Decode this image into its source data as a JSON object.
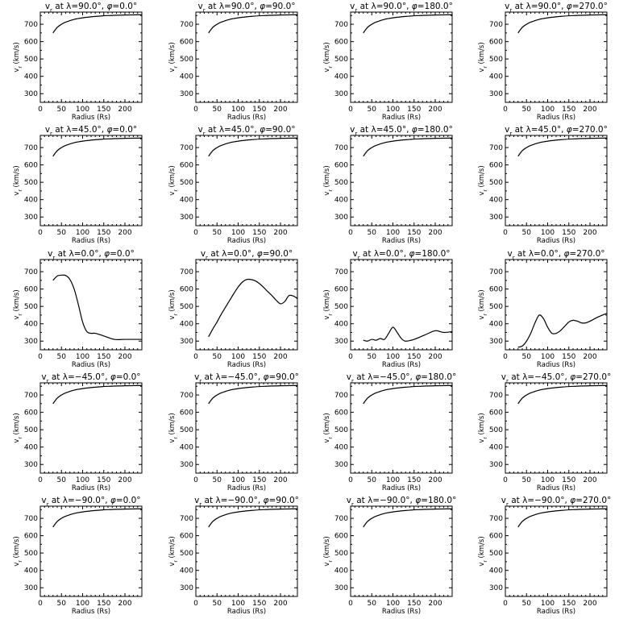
{
  "chart_data": [
    {
      "type": "line",
      "title": "v_r at λ=90.0°, φ=0.0°",
      "title_parts": [
        "v",
        "r",
        "at λ=90.0°, ",
        "φ",
        "=0.0°"
      ],
      "xlabel": "Radius (Rs)",
      "ylabel": "v_r (km/s)",
      "ylabel_parts": [
        "v",
        "r",
        "(km/s)"
      ],
      "xlim": [
        0,
        240
      ],
      "ylim": [
        250,
        770
      ],
      "xticks": [
        0,
        50,
        100,
        150,
        200
      ],
      "yticks": [
        300,
        400,
        500,
        600,
        700
      ],
      "x": [
        30,
        40,
        50,
        60,
        80,
        100,
        130,
        160,
        200,
        240
      ],
      "y": [
        650,
        682,
        700,
        712,
        728,
        737,
        745,
        750,
        753,
        755
      ]
    },
    {
      "type": "line",
      "title": "v_r at λ=90.0°, φ=90.0°",
      "title_parts": [
        "v",
        "r",
        "at λ=90.0°, ",
        "φ",
        "=90.0°"
      ],
      "xlabel": "Radius (Rs)",
      "ylabel": "v_r (km/s)",
      "ylabel_parts": [
        "v",
        "r",
        "(km/s)"
      ],
      "xlim": [
        0,
        240
      ],
      "ylim": [
        250,
        770
      ],
      "xticks": [
        0,
        50,
        100,
        150,
        200
      ],
      "yticks": [
        300,
        400,
        500,
        600,
        700
      ],
      "x": [
        30,
        40,
        50,
        60,
        80,
        100,
        130,
        160,
        200,
        240
      ],
      "y": [
        650,
        682,
        700,
        712,
        728,
        737,
        745,
        750,
        753,
        755
      ]
    },
    {
      "type": "line",
      "title": "v_r at λ=90.0°, φ=180.0°",
      "title_parts": [
        "v",
        "r",
        "at λ=90.0°, ",
        "φ",
        "=180.0°"
      ],
      "xlabel": "Radius (Rs)",
      "ylabel": "v_r (km/s)",
      "ylabel_parts": [
        "v",
        "r",
        "(km/s)"
      ],
      "xlim": [
        0,
        240
      ],
      "ylim": [
        250,
        770
      ],
      "xticks": [
        0,
        50,
        100,
        150,
        200
      ],
      "yticks": [
        300,
        400,
        500,
        600,
        700
      ],
      "x": [
        30,
        40,
        50,
        60,
        80,
        100,
        130,
        160,
        200,
        240
      ],
      "y": [
        650,
        682,
        700,
        712,
        728,
        737,
        745,
        750,
        753,
        755
      ]
    },
    {
      "type": "line",
      "title": "v_r at λ=90.0°, φ=270.0°",
      "title_parts": [
        "v",
        "r",
        "at λ=90.0°, ",
        "φ",
        "=270.0°"
      ],
      "xlabel": "Radius (Rs)",
      "ylabel": "v_r (km/s)",
      "ylabel_parts": [
        "v",
        "r",
        "(km/s)"
      ],
      "xlim": [
        0,
        240
      ],
      "ylim": [
        250,
        770
      ],
      "xticks": [
        0,
        50,
        100,
        150,
        200
      ],
      "yticks": [
        300,
        400,
        500,
        600,
        700
      ],
      "x": [
        30,
        40,
        50,
        60,
        80,
        100,
        130,
        160,
        200,
        240
      ],
      "y": [
        650,
        682,
        700,
        712,
        728,
        737,
        745,
        750,
        753,
        755
      ]
    },
    {
      "type": "line",
      "title": "v_r at λ=45.0°, φ=0.0°",
      "title_parts": [
        "v",
        "r",
        "at λ=45.0°, ",
        "φ",
        "=0.0°"
      ],
      "xlabel": "Radius (Rs)",
      "ylabel": "v_r (km/s)",
      "ylabel_parts": [
        "v",
        "r",
        "(km/s)"
      ],
      "xlim": [
        0,
        240
      ],
      "ylim": [
        250,
        770
      ],
      "xticks": [
        0,
        50,
        100,
        150,
        200
      ],
      "yticks": [
        300,
        400,
        500,
        600,
        700
      ],
      "x": [
        30,
        40,
        50,
        60,
        80,
        100,
        130,
        160,
        200,
        240
      ],
      "y": [
        650,
        682,
        700,
        712,
        728,
        737,
        745,
        750,
        753,
        755
      ]
    },
    {
      "type": "line",
      "title": "v_r at λ=45.0°, φ=90.0°",
      "title_parts": [
        "v",
        "r",
        "at λ=45.0°, ",
        "φ",
        "=90.0°"
      ],
      "xlabel": "Radius (Rs)",
      "ylabel": "v_r (km/s)",
      "ylabel_parts": [
        "v",
        "r",
        "(km/s)"
      ],
      "xlim": [
        0,
        240
      ],
      "ylim": [
        250,
        770
      ],
      "xticks": [
        0,
        50,
        100,
        150,
        200
      ],
      "yticks": [
        300,
        400,
        500,
        600,
        700
      ],
      "x": [
        30,
        40,
        50,
        60,
        80,
        100,
        130,
        160,
        200,
        240
      ],
      "y": [
        650,
        682,
        700,
        712,
        728,
        737,
        745,
        750,
        753,
        755
      ]
    },
    {
      "type": "line",
      "title": "v_r at λ=45.0°, φ=180.0°",
      "title_parts": [
        "v",
        "r",
        "at λ=45.0°, ",
        "φ",
        "=180.0°"
      ],
      "xlabel": "Radius (Rs)",
      "ylabel": "v_r (km/s)",
      "ylabel_parts": [
        "v",
        "r",
        "(km/s)"
      ],
      "xlim": [
        0,
        240
      ],
      "ylim": [
        250,
        770
      ],
      "xticks": [
        0,
        50,
        100,
        150,
        200
      ],
      "yticks": [
        300,
        400,
        500,
        600,
        700
      ],
      "x": [
        30,
        40,
        50,
        60,
        80,
        100,
        130,
        160,
        200,
        240
      ],
      "y": [
        650,
        682,
        700,
        712,
        728,
        737,
        745,
        750,
        753,
        755
      ]
    },
    {
      "type": "line",
      "title": "v_r at λ=45.0°, φ=270.0°",
      "title_parts": [
        "v",
        "r",
        "at λ=45.0°, ",
        "φ",
        "=270.0°"
      ],
      "xlabel": "Radius (Rs)",
      "ylabel": "v_r (km/s)",
      "ylabel_parts": [
        "v",
        "r",
        "(km/s)"
      ],
      "xlim": [
        0,
        240
      ],
      "ylim": [
        250,
        770
      ],
      "xticks": [
        0,
        50,
        100,
        150,
        200
      ],
      "yticks": [
        300,
        400,
        500,
        600,
        700
      ],
      "x": [
        30,
        40,
        50,
        60,
        80,
        100,
        130,
        160,
        200,
        240
      ],
      "y": [
        650,
        682,
        700,
        712,
        728,
        737,
        745,
        750,
        753,
        755
      ]
    },
    {
      "type": "line",
      "title": "v_r at λ=0.0°, φ=0.0°",
      "title_parts": [
        "v",
        "r",
        "at λ=0.0°, ",
        "φ",
        "=0.0°"
      ],
      "xlabel": "Radius (Rs)",
      "ylabel": "v_r (km/s)",
      "ylabel_parts": [
        "v",
        "r",
        "(km/s)"
      ],
      "xlim": [
        0,
        240
      ],
      "ylim": [
        250,
        770
      ],
      "xticks": [
        0,
        50,
        100,
        150,
        200
      ],
      "yticks": [
        300,
        400,
        500,
        600,
        700
      ],
      "x": [
        30,
        40,
        50,
        60,
        70,
        80,
        90,
        100,
        110,
        120,
        130,
        150,
        175,
        200,
        240
      ],
      "y": [
        650,
        675,
        680,
        678,
        655,
        600,
        510,
        410,
        355,
        345,
        345,
        330,
        310,
        310,
        310
      ]
    },
    {
      "type": "line",
      "title": "v_r at λ=0.0°, φ=90.0°",
      "title_parts": [
        "v",
        "r",
        "at λ=0.0°, ",
        "φ",
        "=90.0°"
      ],
      "xlabel": "Radius (Rs)",
      "ylabel": "v_r (km/s)",
      "ylabel_parts": [
        "v",
        "r",
        "(km/s)"
      ],
      "xlim": [
        0,
        240
      ],
      "ylim": [
        250,
        770
      ],
      "xticks": [
        0,
        50,
        100,
        150,
        200
      ],
      "yticks": [
        300,
        400,
        500,
        600,
        700
      ],
      "x": [
        30,
        40,
        50,
        60,
        70,
        80,
        90,
        100,
        110,
        120,
        130,
        140,
        150,
        160,
        170,
        180,
        190,
        200,
        210,
        220,
        230,
        240
      ],
      "y": [
        325,
        370,
        410,
        455,
        495,
        535,
        575,
        612,
        640,
        655,
        655,
        648,
        632,
        610,
        585,
        562,
        535,
        515,
        528,
        562,
        560,
        545
      ]
    },
    {
      "type": "line",
      "title": "v_r at λ=0.0°, φ=180.0°",
      "title_parts": [
        "v",
        "r",
        "at λ=0.0°, ",
        "φ",
        "=180.0°"
      ],
      "xlabel": "Radius (Rs)",
      "ylabel": "v_r (km/s)",
      "ylabel_parts": [
        "v",
        "r",
        "(km/s)"
      ],
      "xlim": [
        0,
        240
      ],
      "ylim": [
        250,
        770
      ],
      "xticks": [
        0,
        50,
        100,
        150,
        200
      ],
      "yticks": [
        300,
        400,
        500,
        600,
        700
      ],
      "x": [
        30,
        40,
        50,
        60,
        70,
        80,
        90,
        100,
        110,
        120,
        130,
        150,
        175,
        200,
        220,
        240
      ],
      "y": [
        305,
        300,
        310,
        305,
        315,
        310,
        345,
        380,
        350,
        315,
        300,
        310,
        335,
        360,
        350,
        355
      ]
    },
    {
      "type": "line",
      "title": "v_r at λ=0.0°, φ=270.0°",
      "title_parts": [
        "v",
        "r",
        "at λ=0.0°, ",
        "φ",
        "=270.0°"
      ],
      "xlabel": "Radius (Rs)",
      "ylabel": "v_r (km/s)",
      "ylabel_parts": [
        "v",
        "r",
        "(km/s)"
      ],
      "xlim": [
        0,
        240
      ],
      "ylim": [
        250,
        770
      ],
      "xticks": [
        0,
        50,
        100,
        150,
        200
      ],
      "yticks": [
        300,
        400,
        500,
        600,
        700
      ],
      "x": [
        30,
        40,
        50,
        60,
        70,
        80,
        90,
        100,
        110,
        120,
        130,
        140,
        150,
        160,
        170,
        180,
        190,
        200,
        220,
        240
      ],
      "y": [
        265,
        272,
        300,
        345,
        405,
        450,
        430,
        380,
        345,
        345,
        360,
        385,
        410,
        420,
        415,
        405,
        405,
        415,
        440,
        460
      ]
    },
    {
      "type": "line",
      "title": "v_r at λ=−45.0°, φ=0.0°",
      "title_parts": [
        "v",
        "r",
        "at λ=−45.0°, ",
        "φ",
        "=0.0°"
      ],
      "xlabel": "Radius (Rs)",
      "ylabel": "v_r (km/s)",
      "ylabel_parts": [
        "v",
        "r",
        "(km/s)"
      ],
      "xlim": [
        0,
        240
      ],
      "ylim": [
        250,
        770
      ],
      "xticks": [
        0,
        50,
        100,
        150,
        200
      ],
      "yticks": [
        300,
        400,
        500,
        600,
        700
      ],
      "x": [
        30,
        40,
        50,
        60,
        80,
        100,
        130,
        160,
        200,
        240
      ],
      "y": [
        650,
        682,
        700,
        712,
        728,
        737,
        745,
        750,
        753,
        755
      ]
    },
    {
      "type": "line",
      "title": "v_r at λ=−45.0°, φ=90.0°",
      "title_parts": [
        "v",
        "r",
        "at λ=−45.0°, ",
        "φ",
        "=90.0°"
      ],
      "xlabel": "Radius (Rs)",
      "ylabel": "v_r (km/s)",
      "ylabel_parts": [
        "v",
        "r",
        "(km/s)"
      ],
      "xlim": [
        0,
        240
      ],
      "ylim": [
        250,
        770
      ],
      "xticks": [
        0,
        50,
        100,
        150,
        200
      ],
      "yticks": [
        300,
        400,
        500,
        600,
        700
      ],
      "x": [
        30,
        40,
        50,
        60,
        80,
        100,
        130,
        160,
        200,
        240
      ],
      "y": [
        650,
        682,
        700,
        712,
        728,
        737,
        745,
        750,
        753,
        755
      ]
    },
    {
      "type": "line",
      "title": "v_r at λ=−45.0°, φ=180.0°",
      "title_parts": [
        "v",
        "r",
        "at λ=−45.0°, ",
        "φ",
        "=180.0°"
      ],
      "xlabel": "Radius (Rs)",
      "ylabel": "v_r (km/s)",
      "ylabel_parts": [
        "v",
        "r",
        "(km/s)"
      ],
      "xlim": [
        0,
        240
      ],
      "ylim": [
        250,
        770
      ],
      "xticks": [
        0,
        50,
        100,
        150,
        200
      ],
      "yticks": [
        300,
        400,
        500,
        600,
        700
      ],
      "x": [
        30,
        40,
        50,
        60,
        80,
        100,
        130,
        160,
        200,
        240
      ],
      "y": [
        650,
        682,
        700,
        712,
        728,
        737,
        745,
        750,
        753,
        755
      ]
    },
    {
      "type": "line",
      "title": "v_r at λ=−45.0°, φ=270.0°",
      "title_parts": [
        "v",
        "r",
        "at λ=−45.0°, ",
        "φ",
        "=270.0°"
      ],
      "xlabel": "Radius (Rs)",
      "ylabel": "v_r (km/s)",
      "ylabel_parts": [
        "v",
        "r",
        "(km/s)"
      ],
      "xlim": [
        0,
        240
      ],
      "ylim": [
        250,
        770
      ],
      "xticks": [
        0,
        50,
        100,
        150,
        200
      ],
      "yticks": [
        300,
        400,
        500,
        600,
        700
      ],
      "x": [
        30,
        40,
        50,
        60,
        80,
        100,
        130,
        160,
        200,
        240
      ],
      "y": [
        650,
        682,
        700,
        712,
        728,
        737,
        745,
        750,
        753,
        755
      ]
    },
    {
      "type": "line",
      "title": "v_r at λ=−90.0°, φ=0.0°",
      "title_parts": [
        "v",
        "r",
        "at λ=−90.0°, ",
        "φ",
        "=0.0°"
      ],
      "xlabel": "Radius (Rs)",
      "ylabel": "v_r (km/s)",
      "ylabel_parts": [
        "v",
        "r",
        "(km/s)"
      ],
      "xlim": [
        0,
        240
      ],
      "ylim": [
        250,
        770
      ],
      "xticks": [
        0,
        50,
        100,
        150,
        200
      ],
      "yticks": [
        300,
        400,
        500,
        600,
        700
      ],
      "x": [
        30,
        40,
        50,
        60,
        80,
        100,
        130,
        160,
        200,
        240
      ],
      "y": [
        650,
        682,
        700,
        712,
        728,
        737,
        745,
        750,
        753,
        755
      ]
    },
    {
      "type": "line",
      "title": "v_r at λ=−90.0°, φ=90.0°",
      "title_parts": [
        "v",
        "r",
        "at λ=−90.0°, ",
        "φ",
        "=90.0°"
      ],
      "xlabel": "Radius (Rs)",
      "ylabel": "v_r (km/s)",
      "ylabel_parts": [
        "v",
        "r",
        "(km/s)"
      ],
      "xlim": [
        0,
        240
      ],
      "ylim": [
        250,
        770
      ],
      "xticks": [
        0,
        50,
        100,
        150,
        200
      ],
      "yticks": [
        300,
        400,
        500,
        600,
        700
      ],
      "x": [
        30,
        40,
        50,
        60,
        80,
        100,
        130,
        160,
        200,
        240
      ],
      "y": [
        650,
        682,
        700,
        712,
        728,
        737,
        745,
        750,
        753,
        755
      ]
    },
    {
      "type": "line",
      "title": "v_r at λ=−90.0°, φ=180.0°",
      "title_parts": [
        "v",
        "r",
        "at λ=−90.0°, ",
        "φ",
        "=180.0°"
      ],
      "xlabel": "Radius (Rs)",
      "ylabel": "v_r (km/s)",
      "ylabel_parts": [
        "v",
        "r",
        "(km/s)"
      ],
      "xlim": [
        0,
        240
      ],
      "ylim": [
        250,
        770
      ],
      "xticks": [
        0,
        50,
        100,
        150,
        200
      ],
      "yticks": [
        300,
        400,
        500,
        600,
        700
      ],
      "x": [
        30,
        40,
        50,
        60,
        80,
        100,
        130,
        160,
        200,
        240
      ],
      "y": [
        650,
        682,
        700,
        712,
        728,
        737,
        745,
        750,
        753,
        755
      ]
    },
    {
      "type": "line",
      "title": "v_r at λ=−90.0°, φ=270.0°",
      "title_parts": [
        "v",
        "r",
        "at λ=−90.0°, ",
        "φ",
        "=270.0°"
      ],
      "xlabel": "Radius (Rs)",
      "ylabel": "v_r (km/s)",
      "ylabel_parts": [
        "v",
        "r",
        "(km/s)"
      ],
      "xlim": [
        0,
        240
      ],
      "ylim": [
        250,
        770
      ],
      "xticks": [
        0,
        50,
        100,
        150,
        200
      ],
      "yticks": [
        300,
        400,
        500,
        600,
        700
      ],
      "x": [
        30,
        40,
        50,
        60,
        80,
        100,
        130,
        160,
        200,
        240
      ],
      "y": [
        650,
        682,
        700,
        712,
        728,
        737,
        745,
        750,
        753,
        755
      ]
    }
  ]
}
